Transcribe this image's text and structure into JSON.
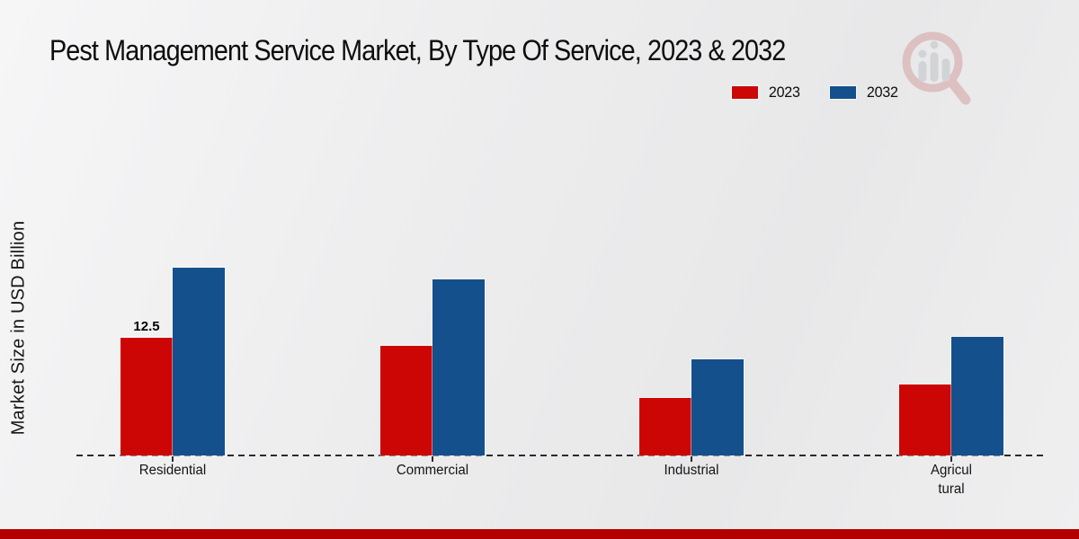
{
  "page": {
    "footer_bar_color": "#b20000"
  },
  "legend": {
    "items": [
      {
        "label": "2023",
        "color": "#cc0505"
      },
      {
        "label": "2032",
        "color": "#14508c"
      }
    ]
  },
  "chart_data": {
    "type": "bar",
    "title": "Pest Management Service Market, By Type Of Service, 2023 & 2032",
    "xlabel": "",
    "ylabel": "Market Size in USD Billion",
    "categories": [
      "Residential",
      "Commercial",
      "Industrial",
      "Agricultural"
    ],
    "tick_labels": [
      "Residential",
      "Commercial",
      "Industrial",
      "Agricul\ntural"
    ],
    "series": [
      {
        "name": "2023",
        "color": "#cc0505",
        "values": [
          12.5,
          11.6,
          6.1,
          7.5
        ]
      },
      {
        "name": "2032",
        "color": "#14508c",
        "values": [
          19.9,
          18.7,
          10.2,
          12.6
        ]
      }
    ],
    "bar_value_labels": [
      {
        "series": "2023",
        "category": "Residential",
        "text": "12.5"
      }
    ],
    "ylim": [
      0,
      22
    ],
    "grid": false,
    "legend_position": "top-right",
    "baseline_style": "dashed"
  }
}
